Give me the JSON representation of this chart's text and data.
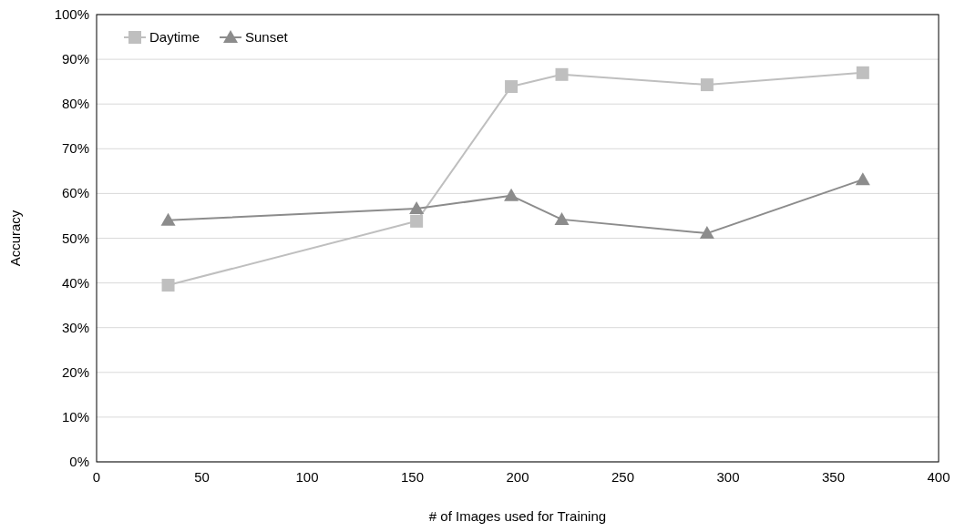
{
  "chart_data": {
    "type": "line",
    "xlabel": "# of Images used for Training",
    "ylabel": "Accuracy",
    "xlim": [
      0,
      400
    ],
    "xticks": [
      0,
      50,
      100,
      150,
      200,
      250,
      300,
      350,
      400
    ],
    "ylim": [
      0,
      100
    ],
    "yticks": [
      {
        "value": 0,
        "label": "0%"
      },
      {
        "value": 10,
        "label": "10%"
      },
      {
        "value": 20,
        "label": "20%"
      },
      {
        "value": 30,
        "label": "30%"
      },
      {
        "value": 40,
        "label": "40%"
      },
      {
        "value": 50,
        "label": "50%"
      },
      {
        "value": 60,
        "label": "60%"
      },
      {
        "value": 70,
        "label": "70%"
      },
      {
        "value": 80,
        "label": "80%"
      },
      {
        "value": 90,
        "label": "90%"
      },
      {
        "value": 100,
        "label": "100%"
      }
    ],
    "grid": "y",
    "legend": "top left",
    "series": [
      {
        "name": "Daytime",
        "color": "#bfbfbf",
        "marker": "square",
        "x": [
          34,
          152,
          197,
          221,
          290,
          364
        ],
        "values": [
          39.5,
          53.8,
          83.9,
          86.6,
          84.3,
          87.0
        ]
      },
      {
        "name": "Sunset",
        "color": "#8c8c8c",
        "marker": "triangle",
        "x": [
          34,
          152,
          197,
          221,
          290,
          364
        ],
        "values": [
          54.0,
          56.6,
          59.5,
          54.2,
          51.1,
          63.1
        ]
      }
    ]
  }
}
